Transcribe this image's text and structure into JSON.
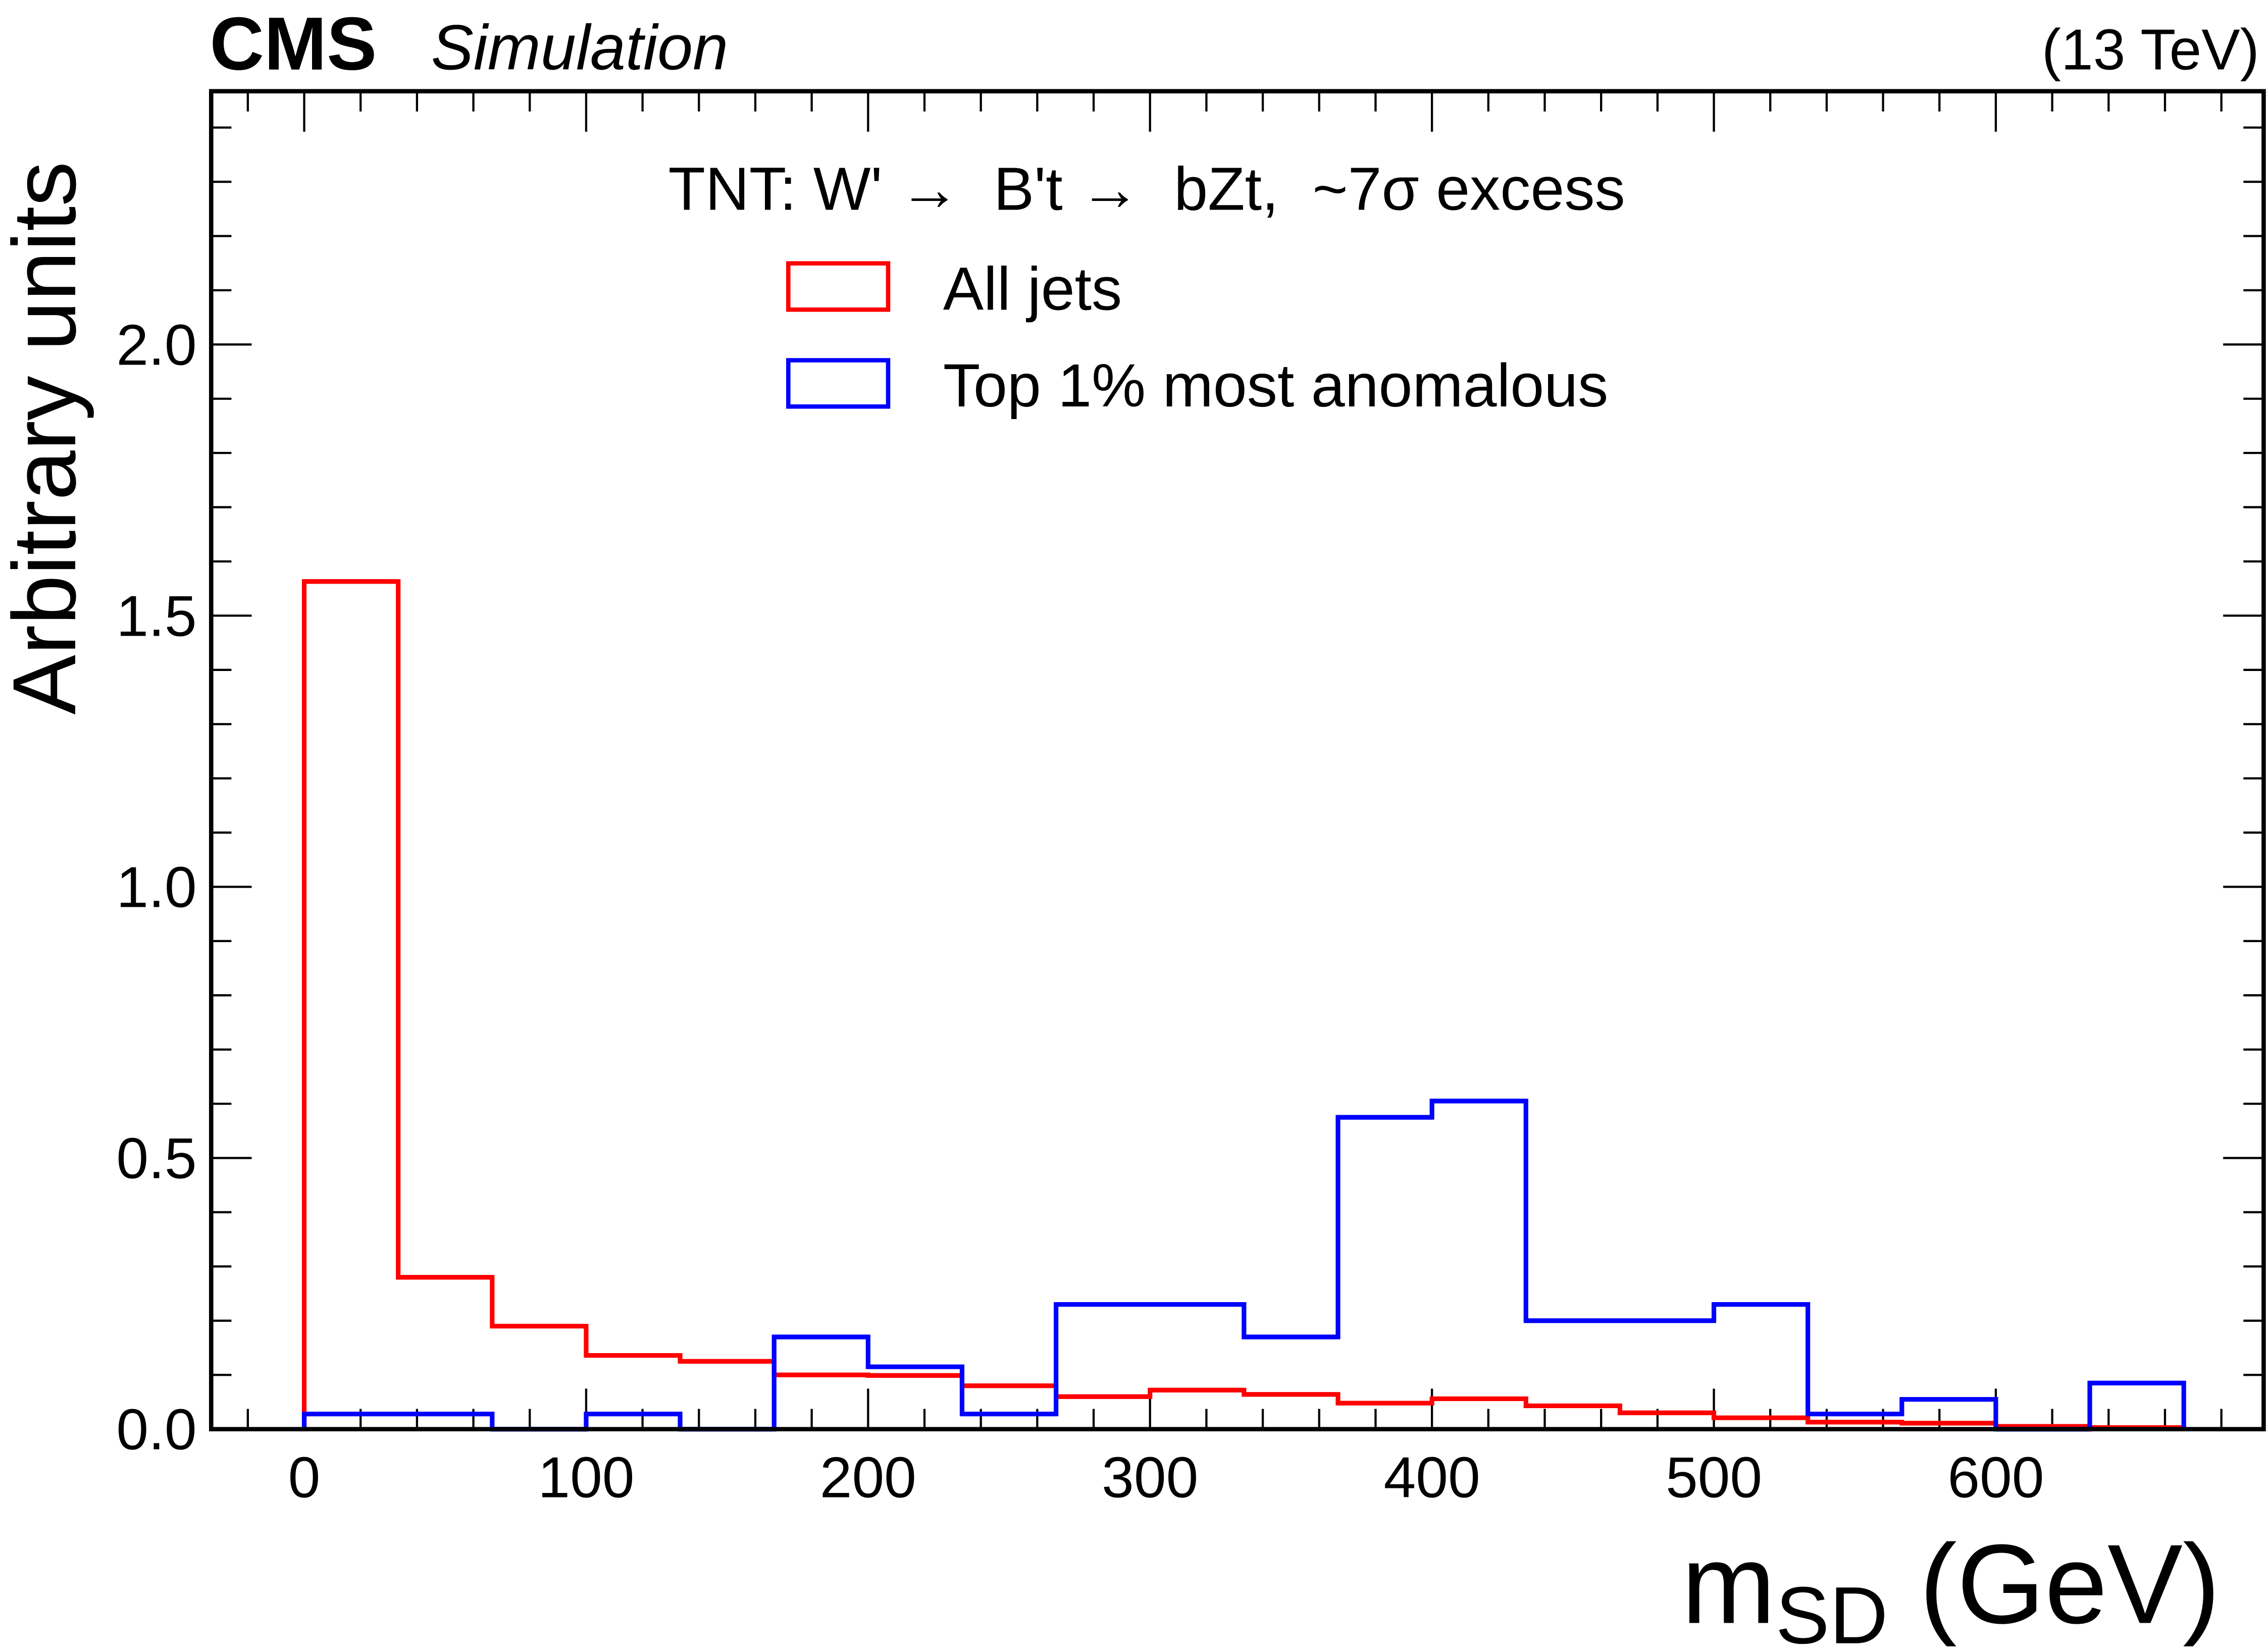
{
  "chart_data": {
    "type": "histogram-step",
    "experiment": "CMS",
    "label": "Simulation",
    "energy": "(13 TeV)",
    "legend_title": "TNT: W' →  B't →  bZt,  ~7σ excess",
    "xlabel_main": "m",
    "xlabel_sub": "SD",
    "xlabel_unit": " (GeV)",
    "ylabel": "Arbitrary units",
    "xlim": [
      -33,
      695
    ],
    "ylim": [
      0,
      2.467
    ],
    "xticks": [
      0,
      100,
      200,
      300,
      400,
      500,
      600
    ],
    "xtick_labels": [
      "0",
      "100",
      "200",
      "300",
      "400",
      "500",
      "600"
    ],
    "yticks": [
      0,
      0.5,
      1,
      1.5,
      2
    ],
    "ytick_labels": [
      "0.0",
      "0.5",
      "1.0",
      "1.5",
      "2.0"
    ],
    "legend_position": "top-center",
    "bin_edges": [
      0,
      33.33,
      66.67,
      100,
      133.33,
      166.67,
      200,
      233.33,
      266.67,
      300,
      333.33,
      366.67,
      400,
      433.33,
      466.67,
      500,
      533.33,
      566.67,
      600,
      633.33,
      666.67
    ],
    "series": [
      {
        "name": "All jets",
        "color": "#ff0000",
        "values": [
          1.563,
          0.28,
          0.19,
          0.136,
          0.125,
          0.1,
          0.099,
          0.08,
          0.06,
          0.072,
          0.064,
          0.048,
          0.056,
          0.043,
          0.03,
          0.021,
          0.013,
          0.011,
          0.005,
          0.003
        ]
      },
      {
        "name": "Top 1% most anomalous",
        "color": "#0000ff",
        "values": [
          0.028,
          0.028,
          0,
          0.028,
          0,
          0.17,
          0.115,
          0.028,
          0.23,
          0.23,
          0.17,
          0.575,
          0.605,
          0.2,
          0.2,
          0.23,
          0.028,
          0.055,
          0,
          0.085
        ]
      }
    ]
  }
}
